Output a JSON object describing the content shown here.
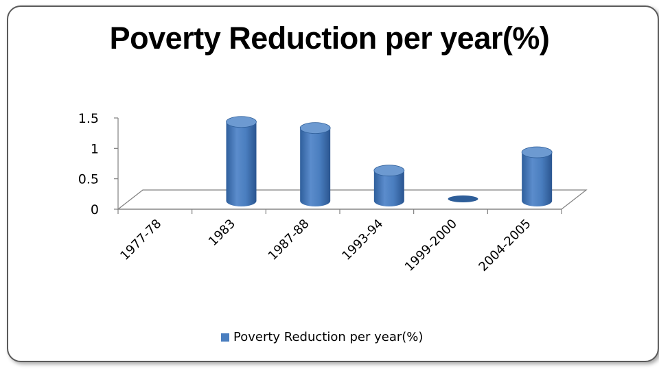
{
  "chart_data": {
    "type": "bar",
    "title": "Poverty Reduction per year(%)",
    "categories": [
      "1977-78",
      "1983",
      "1987-88",
      "1993-94",
      "1999-2000",
      "2004-2005"
    ],
    "series": [
      {
        "name": "Poverty Reduction per year(%)",
        "values": [
          0,
          1.3,
          1.2,
          0.5,
          0,
          0.8
        ]
      }
    ],
    "ylim": [
      0,
      1.5
    ],
    "yticks": [
      "0",
      "0.5",
      "1",
      "1.5"
    ],
    "grid": false,
    "legend_position": "bottom",
    "style": "3d-cylinder",
    "colors": {
      "bar": "#4a7ebf",
      "bar_dark": "#2e5e99",
      "bar_top": "#6d9ad1",
      "axis": "#808080"
    }
  }
}
